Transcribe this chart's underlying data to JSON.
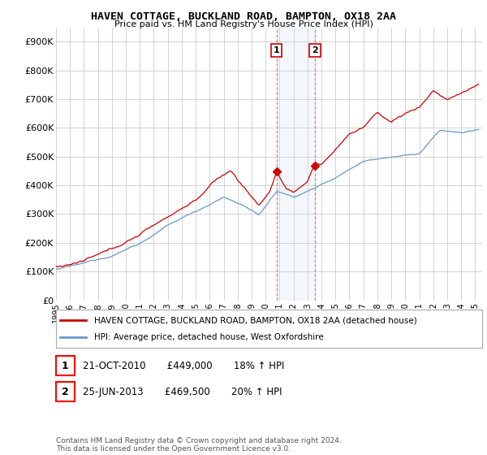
{
  "title": "HAVEN COTTAGE, BUCKLAND ROAD, BAMPTON, OX18 2AA",
  "subtitle": "Price paid vs. HM Land Registry's House Price Index (HPI)",
  "ylabel_ticks": [
    "£0",
    "£100K",
    "£200K",
    "£300K",
    "£400K",
    "£500K",
    "£600K",
    "£700K",
    "£800K",
    "£900K"
  ],
  "ytick_values": [
    0,
    100000,
    200000,
    300000,
    400000,
    500000,
    600000,
    700000,
    800000,
    900000
  ],
  "ylim": [
    0,
    950000
  ],
  "xlim_start": 1995.0,
  "xlim_end": 2025.5,
  "red_line_color": "#cc0000",
  "blue_line_color": "#6699cc",
  "sale1_year": 2010.8,
  "sale2_year": 2013.5,
  "sale1_price": 449000,
  "sale2_price": 469500,
  "sale1_date": "21-OCT-2010",
  "sale1_price_str": "£449,000",
  "sale1_hpi": "18% ↑ HPI",
  "sale2_date": "25-JUN-2013",
  "sale2_price_str": "£469,500",
  "sale2_hpi": "20% ↑ HPI",
  "legend_label1": "HAVEN COTTAGE, BUCKLAND ROAD, BAMPTON, OX18 2AA (detached house)",
  "legend_label2": "HPI: Average price, detached house, West Oxfordshire",
  "footer": "Contains HM Land Registry data © Crown copyright and database right 2024.\nThis data is licensed under the Open Government Licence v3.0.",
  "background_color": "#ffffff",
  "grid_color": "#cccccc",
  "xtick_years": [
    1995,
    1996,
    1997,
    1998,
    1999,
    2000,
    2001,
    2002,
    2003,
    2004,
    2005,
    2006,
    2007,
    2008,
    2009,
    2010,
    2011,
    2012,
    2013,
    2014,
    2015,
    2016,
    2017,
    2018,
    2019,
    2020,
    2021,
    2022,
    2023,
    2024,
    2025
  ]
}
